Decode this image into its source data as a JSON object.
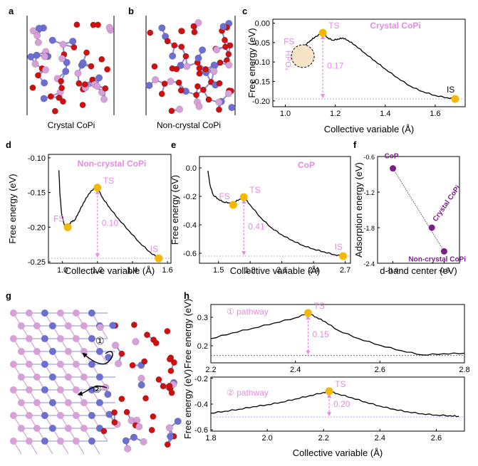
{
  "panel_labels": {
    "a": "a",
    "b": "b",
    "c": "c",
    "d": "d",
    "e": "e",
    "f": "f",
    "g": "g",
    "h": "h"
  },
  "panel_a": {
    "caption": "Crystal CoPi"
  },
  "panel_b": {
    "caption": "Non-crystal CoPi"
  },
  "panel_g": {
    "step1": "①",
    "step2": "②"
  },
  "colors": {
    "pink": "#e58ae5",
    "orange": "#f5b800",
    "purple": "#7a1f8a",
    "co": "#6d6fd0",
    "o": "#cc1111",
    "p": "#d8a0d8",
    "line": "#000000"
  },
  "chart_data": [
    {
      "id": "c",
      "type": "line",
      "title": "Crystal CoPi",
      "xlabel": "Collective variable (Å)",
      "ylabel": "Free energy (eV)",
      "xlim": [
        0.95,
        1.72
      ],
      "ylim": [
        -0.215,
        0.01
      ],
      "xticks": [
        1.0,
        1.2,
        1.4,
        1.6
      ],
      "xtick_labels": [
        "1.0",
        "1.2",
        "1.4",
        "1.6"
      ],
      "yticks": [
        0.0,
        -0.05,
        -0.1,
        -0.15,
        -0.2
      ],
      "ytick_labels": [
        "0.00",
        "-0.05",
        "-0.10",
        "-0.15",
        "-0.20"
      ],
      "x": [
        1.05,
        1.06,
        1.08,
        1.1,
        1.12,
        1.15,
        1.17,
        1.19,
        1.21,
        1.23,
        1.25,
        1.28,
        1.32,
        1.36,
        1.4,
        1.45,
        1.5,
        1.55,
        1.6,
        1.65,
        1.68
      ],
      "y": [
        -0.072,
        -0.066,
        -0.056,
        -0.045,
        -0.035,
        -0.025,
        -0.038,
        -0.044,
        -0.041,
        -0.038,
        -0.044,
        -0.057,
        -0.078,
        -0.098,
        -0.118,
        -0.141,
        -0.162,
        -0.176,
        -0.186,
        -0.192,
        -0.195
      ],
      "markers": [
        {
          "label": "FS",
          "x": 1.05,
          "y": -0.07
        },
        {
          "label": "TS",
          "x": 1.15,
          "y": -0.025
        },
        {
          "label": "IS",
          "x": 1.68,
          "y": -0.195
        }
      ],
      "barrier": {
        "value": "0.17",
        "x": 1.15,
        "from": -0.025,
        "to": -0.195
      },
      "annotation": "HPO₄"
    },
    {
      "id": "d",
      "type": "line",
      "title": "Non-crystal CoPi",
      "xlabel": "Collective variable (Å)",
      "ylabel": "Free energy (eV)",
      "xlim": [
        0.92,
        1.62
      ],
      "ylim": [
        -0.252,
        -0.095
      ],
      "xticks": [
        1.0,
        1.2,
        1.4,
        1.6
      ],
      "xtick_labels": [
        "1.0",
        "1.2",
        "1.4",
        "1.6"
      ],
      "yticks": [
        -0.1,
        -0.15,
        -0.2,
        -0.25
      ],
      "ytick_labels": [
        "-0.10",
        "-0.15",
        "-0.20",
        "-0.25"
      ],
      "x": [
        0.98,
        0.985,
        0.995,
        1.01,
        1.03,
        1.05,
        1.07,
        1.09,
        1.12,
        1.15,
        1.18,
        1.2,
        1.23,
        1.27,
        1.32,
        1.38,
        1.44,
        1.5,
        1.55
      ],
      "y": [
        -0.118,
        -0.15,
        -0.18,
        -0.196,
        -0.2,
        -0.192,
        -0.19,
        -0.18,
        -0.165,
        -0.152,
        -0.144,
        -0.143,
        -0.158,
        -0.172,
        -0.188,
        -0.205,
        -0.222,
        -0.236,
        -0.245
      ],
      "markers": [
        {
          "label": "FS",
          "x": 1.03,
          "y": -0.2
        },
        {
          "label": "TS",
          "x": 1.2,
          "y": -0.143
        },
        {
          "label": "IS",
          "x": 1.55,
          "y": -0.245
        }
      ],
      "barrier": {
        "value": "0.10",
        "x": 1.2,
        "from": -0.143,
        "to": -0.245
      }
    },
    {
      "id": "e",
      "type": "line",
      "title": "CoP",
      "xlabel": "Collective variable (Å)",
      "ylabel": "Free energy (eV)",
      "xlim": [
        1.32,
        2.75
      ],
      "ylim": [
        -0.67,
        0.08
      ],
      "xticks": [
        1.5,
        1.8,
        2.1,
        2.4,
        2.7
      ],
      "xtick_labels": [
        "1.5",
        "1.8",
        "2.1",
        "2.4",
        "2.7"
      ],
      "yticks": [
        0.0,
        -0.2,
        -0.4,
        -0.6
      ],
      "ytick_labels": [
        "0.0",
        "-0.2",
        "-0.4",
        "-0.6"
      ],
      "x": [
        1.4,
        1.42,
        1.45,
        1.5,
        1.55,
        1.6,
        1.65,
        1.7,
        1.74,
        1.8,
        1.9,
        2.0,
        2.1,
        2.2,
        2.3,
        2.4,
        2.5,
        2.6,
        2.68
      ],
      "y": [
        -0.02,
        -0.12,
        -0.19,
        -0.22,
        -0.24,
        -0.245,
        -0.24,
        -0.22,
        -0.205,
        -0.26,
        -0.35,
        -0.42,
        -0.47,
        -0.51,
        -0.545,
        -0.57,
        -0.59,
        -0.61,
        -0.62
      ],
      "markers": [
        {
          "label": "FS",
          "x": 1.64,
          "y": -0.26
        },
        {
          "label": "TS",
          "x": 1.74,
          "y": -0.205
        },
        {
          "label": "IS",
          "x": 2.68,
          "y": -0.62
        }
      ],
      "barrier": {
        "value": "0.41",
        "x": 1.74,
        "from": -0.205,
        "to": -0.62
      }
    },
    {
      "id": "f",
      "type": "scatter",
      "xlabel": "d-band center (eV)",
      "ylabel": "Adsorption energy (eV)",
      "xlim": [
        -1.15,
        -0.35
      ],
      "ylim": [
        -2.4,
        -0.6
      ],
      "xticks": [
        -1.0,
        -0.5
      ],
      "xtick_labels": [
        "-1.0",
        "-0.5"
      ],
      "yticks": [
        -0.6,
        -1.2,
        -1.8,
        -2.4
      ],
      "ytick_labels": [
        "-0.6",
        "-1.2",
        "-1.8",
        "-2.4"
      ],
      "points": [
        {
          "label": "CoP",
          "x": -1.0,
          "y": -0.8
        },
        {
          "label": "Crystal CoPi",
          "x": -0.62,
          "y": -1.8
        },
        {
          "label": "Non-crystal CoPi",
          "x": -0.5,
          "y": -2.2
        }
      ]
    },
    {
      "id": "h1",
      "type": "line",
      "title": "① pathway",
      "xlabel": "",
      "ylabel": "Free energy (eV)",
      "xlim": [
        2.2,
        2.8
      ],
      "ylim": [
        0.14,
        0.345
      ],
      "xticks": [
        2.2,
        2.4,
        2.6,
        2.8
      ],
      "xtick_labels": [
        "2.2",
        "2.4",
        "2.6",
        "2.8"
      ],
      "yticks": [
        0.3,
        0.2
      ],
      "ytick_labels": [
        "0.3",
        "0.2"
      ],
      "x": [
        2.2,
        2.25,
        2.3,
        2.35,
        2.4,
        2.43,
        2.45,
        2.47,
        2.5,
        2.55,
        2.6,
        2.65,
        2.7,
        2.75,
        2.8
      ],
      "y": [
        0.225,
        0.245,
        0.262,
        0.28,
        0.298,
        0.315,
        0.3,
        0.285,
        0.255,
        0.225,
        0.202,
        0.183,
        0.168,
        0.172,
        0.174
      ],
      "markers": [
        {
          "label": "TS",
          "x": 2.43,
          "y": 0.315
        }
      ],
      "barrier": {
        "value": "0.15",
        "x": 2.43,
        "from": 0.315,
        "to": 0.166
      },
      "baseline": 0.166
    },
    {
      "id": "h2",
      "type": "line",
      "title": "② pathway",
      "xlabel": "Collective variable (Å)",
      "ylabel": "Free energy (eV)",
      "xlim": [
        1.8,
        2.7
      ],
      "ylim": [
        -0.61,
        -0.19
      ],
      "xticks": [
        1.8,
        2.0,
        2.2,
        2.4,
        2.6
      ],
      "xtick_labels": [
        "1.8",
        "2.0",
        "2.2",
        "2.4",
        "2.6"
      ],
      "yticks": [
        -0.2,
        -0.4,
        -0.6
      ],
      "ytick_labels": [
        "-0.2",
        "-0.4",
        "-0.6"
      ],
      "x": [
        1.8,
        1.85,
        1.9,
        1.95,
        2.0,
        2.05,
        2.1,
        2.15,
        2.2,
        2.22,
        2.25,
        2.3,
        2.35,
        2.4,
        2.45,
        2.5,
        2.55,
        2.6,
        2.65,
        2.68
      ],
      "y": [
        -0.47,
        -0.455,
        -0.44,
        -0.42,
        -0.405,
        -0.385,
        -0.36,
        -0.335,
        -0.31,
        -0.3,
        -0.32,
        -0.35,
        -0.385,
        -0.415,
        -0.44,
        -0.46,
        -0.475,
        -0.485,
        -0.49,
        -0.495
      ],
      "markers": [
        {
          "label": "TS",
          "x": 2.22,
          "y": -0.3
        }
      ],
      "barrier": {
        "value": "0.20",
        "x": 2.22,
        "from": -0.3,
        "to": -0.5
      },
      "baseline": -0.5
    }
  ]
}
